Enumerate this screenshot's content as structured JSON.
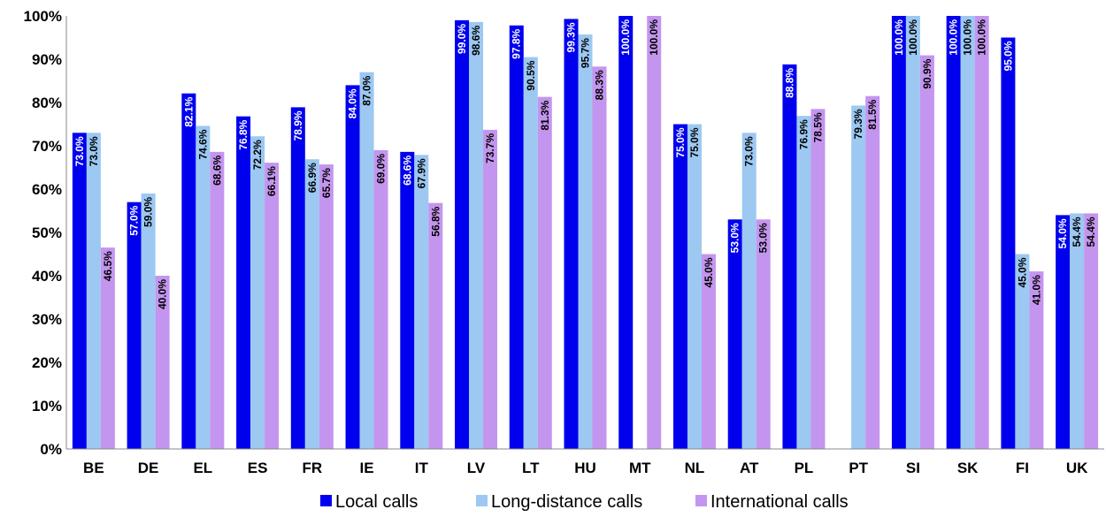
{
  "chart_data": {
    "type": "bar",
    "title": "",
    "xlabel": "",
    "ylabel": "",
    "ylim": [
      0,
      100
    ],
    "y_ticks": [
      0,
      10,
      20,
      30,
      40,
      50,
      60,
      70,
      80,
      90,
      100
    ],
    "y_tick_labels": [
      "0%",
      "10%",
      "20%",
      "30%",
      "40%",
      "50%",
      "60%",
      "70%",
      "80%",
      "90%",
      "100%"
    ],
    "grid": false,
    "legend_position": "bottom",
    "categories": [
      "BE",
      "DE",
      "EL",
      "ES",
      "FR",
      "IE",
      "IT",
      "LV",
      "LT",
      "HU",
      "MT",
      "NL",
      "AT",
      "PL",
      "PT",
      "SI",
      "SK",
      "FI",
      "UK"
    ],
    "series": [
      {
        "name": "Local calls",
        "color": "#0000ee",
        "label_color": "#ffffff",
        "values": [
          73.0,
          57.0,
          82.1,
          76.8,
          78.9,
          84.0,
          68.6,
          99.0,
          97.8,
          99.3,
          100.0,
          75.0,
          53.0,
          88.8,
          null,
          100.0,
          100.0,
          95.0,
          54.0
        ],
        "labels": [
          "73.0%",
          "57.0%",
          "82.1%",
          "76.8%",
          "78.9%",
          "84.0%",
          "68.6%",
          "99.0%",
          "97.8%",
          "99.3%",
          "100.0%",
          "75.0%",
          "53.0%",
          "88.8%",
          "",
          "100.0%",
          "100.0%",
          "95.0%",
          "54.0%"
        ]
      },
      {
        "name": "Long-distance calls",
        "color": "#9cc8f2",
        "label_color": "#000000",
        "values": [
          73.0,
          59.0,
          74.6,
          72.2,
          66.9,
          87.0,
          67.9,
          98.6,
          90.5,
          95.7,
          null,
          75.0,
          73.0,
          76.9,
          79.3,
          100.0,
          100.0,
          45.0,
          54.4
        ],
        "labels": [
          "73.0%",
          "59.0%",
          "74.6%",
          "72.2%",
          "66.9%",
          "87.0%",
          "67.9%",
          "98.6%",
          "90.5%",
          "95.7%",
          "",
          "75.0%",
          "73.0%",
          "76.9%",
          "79.3%",
          "100.0%",
          "100.0%",
          "45.0%",
          "54.4%"
        ]
      },
      {
        "name": "International calls",
        "color": "#c495ef",
        "label_color": "#000000",
        "values": [
          46.5,
          40.0,
          68.6,
          66.1,
          65.7,
          69.0,
          56.8,
          73.7,
          81.3,
          88.3,
          100.0,
          45.0,
          53.0,
          78.5,
          81.5,
          90.9,
          100.0,
          41.0,
          54.4
        ],
        "labels": [
          "46.5%",
          "40.0%",
          "68.6%",
          "66.1%",
          "65.7%",
          "69.0%",
          "56.8%",
          "73.7%",
          "81.3%",
          "88.3%",
          "100.0%",
          "45.0%",
          "53.0%",
          "78.5%",
          "81.5%",
          "90.9%",
          "100.0%",
          "41.0%",
          "54.4%"
        ]
      }
    ]
  }
}
